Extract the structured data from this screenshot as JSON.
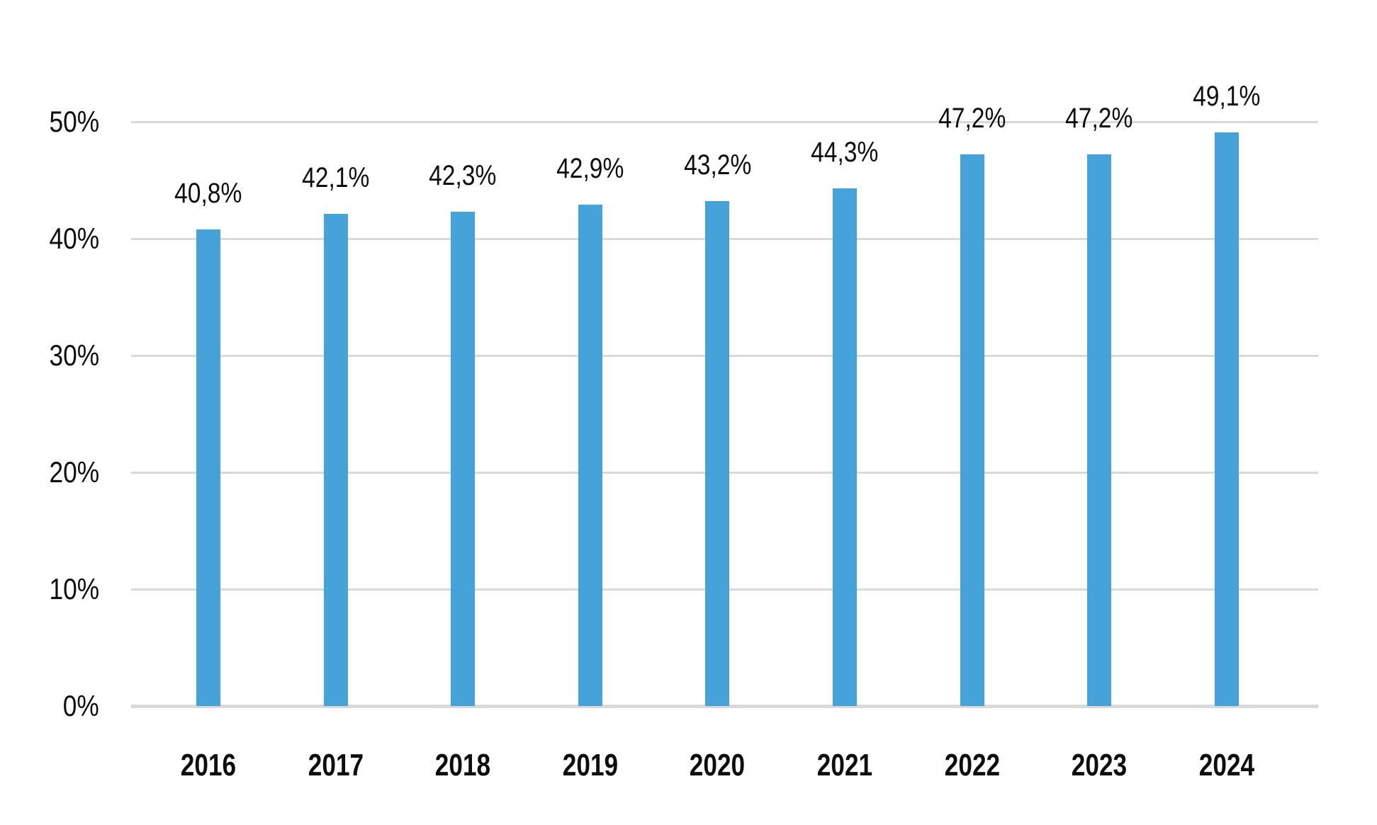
{
  "chart_data": {
    "type": "bar",
    "title": "",
    "categories": [
      "2016",
      "2017",
      "2018",
      "2019",
      "2020",
      "2021",
      "2022",
      "2023",
      "2024"
    ],
    "values": [
      40.8,
      42.1,
      42.3,
      42.9,
      43.2,
      44.3,
      47.2,
      47.2,
      49.1
    ],
    "value_labels": [
      "40,8%",
      "42,1%",
      "42,3%",
      "42,9%",
      "43,2%",
      "44,3%",
      "47,2%",
      "47,2%",
      "49,1%"
    ],
    "xlabel": "",
    "ylabel": "",
    "ylim": [
      0,
      50
    ],
    "yticks": [
      0,
      10,
      20,
      30,
      40,
      50
    ],
    "ytick_labels": [
      "0%",
      "10%",
      "20%",
      "30%",
      "40%",
      "50%"
    ],
    "grid": "horizontal-only",
    "legend": "none",
    "decimal_separator": ",",
    "colors": {
      "bar": "#45A3DA",
      "gridline": "#D9D9D9",
      "baseline": "#D9D9D9",
      "text": "#0E0E0E",
      "background": "#FFFFFF"
    }
  }
}
